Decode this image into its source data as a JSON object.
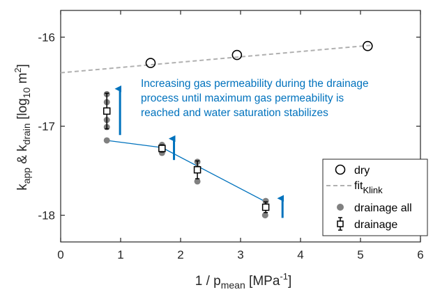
{
  "chart_data": {
    "type": "scatter",
    "xlabel": {
      "base": "1 / p",
      "sub": "mean",
      "unit_pre": " [MPa",
      "unit_sup": "-1",
      "unit_post": "]"
    },
    "ylabel": {
      "k1": "k",
      "k1_sub": "app",
      "amp": " & k",
      "k2_sub": "drain",
      "pre": " [log",
      "log_sub": "10",
      "unit": " m",
      "unit_sup": "2",
      "post": "]"
    },
    "xlim": [
      0,
      6
    ],
    "ylim": [
      -18.3,
      -15.7
    ],
    "xticks": [
      "0",
      "1",
      "2",
      "3",
      "4",
      "5",
      "6"
    ],
    "yticks": [
      "-18",
      "-17",
      "-16"
    ],
    "grid": false,
    "legend_position": "bottom-right",
    "colors": {
      "accent": "#0072bd",
      "fit": "#b0b0b0",
      "drainage_all": "#808080",
      "axis": "#262626"
    },
    "series": [
      {
        "name": "dry",
        "marker": "open-circle",
        "points": [
          {
            "x": 1.5,
            "y": -16.29
          },
          {
            "x": 2.94,
            "y": -16.2
          },
          {
            "x": 5.12,
            "y": -16.1
          }
        ]
      },
      {
        "name_base": "fit",
        "name_sub": "Klink",
        "style": "dashed-line",
        "points": [
          {
            "x": 0,
            "y": -16.4
          },
          {
            "x": 5.2,
            "y": -16.09
          }
        ]
      },
      {
        "name": "drainage all",
        "marker": "filled-circle",
        "points": [
          {
            "x": 0.77,
            "y": -16.64
          },
          {
            "x": 0.77,
            "y": -16.73
          },
          {
            "x": 0.77,
            "y": -16.93
          },
          {
            "x": 0.77,
            "y": -17.01
          },
          {
            "x": 0.77,
            "y": -17.16
          },
          {
            "x": 1.69,
            "y": -17.21
          },
          {
            "x": 1.69,
            "y": -17.24
          },
          {
            "x": 1.69,
            "y": -17.3
          },
          {
            "x": 2.28,
            "y": -17.4
          },
          {
            "x": 2.28,
            "y": -17.47
          },
          {
            "x": 2.28,
            "y": -17.62
          },
          {
            "x": 3.42,
            "y": -17.84
          },
          {
            "x": 3.42,
            "y": -17.92
          },
          {
            "x": 3.41,
            "y": -18.0
          }
        ]
      },
      {
        "name": "drainage",
        "marker": "open-square-errorbar",
        "points": [
          {
            "x": 0.77,
            "y": -16.83,
            "err": 0.2
          },
          {
            "x": 1.69,
            "y": -17.25,
            "err": 0.04
          },
          {
            "x": 2.28,
            "y": -17.49,
            "err": 0.1
          },
          {
            "x": 3.42,
            "y": -17.91,
            "err": 0.06
          }
        ]
      }
    ],
    "fit_lines": [
      {
        "points": [
          {
            "x": 0.77,
            "y": -17.16
          },
          {
            "x": 1.69,
            "y": -17.24
          }
        ]
      },
      {
        "points": [
          {
            "x": 1.69,
            "y": -17.24
          },
          {
            "x": 3.45,
            "y": -17.86
          }
        ]
      }
    ],
    "arrows": [
      {
        "x": 0.99,
        "from": -17.1,
        "to": -16.58
      },
      {
        "x": 1.89,
        "from": -17.38,
        "to": -17.14
      },
      {
        "x": 3.7,
        "from": -18.03,
        "to": -17.81
      }
    ],
    "annotation": [
      "Increasing gas permeability during the drainage",
      "process until maximum gas permeability is",
      "reached and water saturation stabilizes"
    ]
  }
}
